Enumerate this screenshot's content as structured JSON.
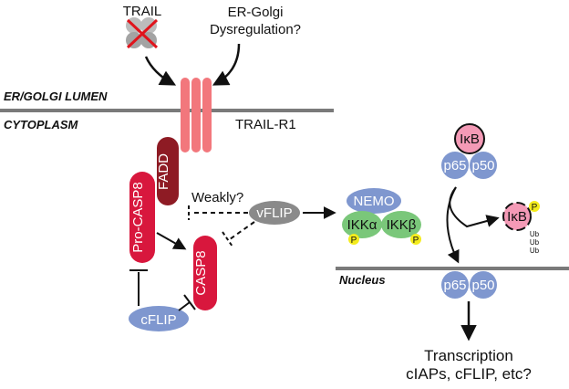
{
  "colors": {
    "membrane": "#7a7a7a",
    "receptor": "#f2777c",
    "fadd": "#8e1b24",
    "casp": "#d8173d",
    "vflip": "#8a8a8a",
    "nemo": "#7f97cf",
    "ikk": "#7ac77a",
    "phospho": "#f4ec1c",
    "ikb": "#f49ab6",
    "p65p50": "#7f97cf",
    "cflip": "#7f97cf"
  },
  "icons": {
    "trail_ligand": "gray-trimer-icon",
    "trail_blocked": "red-x-icon"
  },
  "labels": {
    "trail": "TRAIL",
    "er_golgi_1": "ER-Golgi",
    "er_golgi_2": "Dysregulation?",
    "er_golgi_lumen": "ER/GOLGI LUMEN",
    "cytoplasm": "CYTOPLASM",
    "trail_r1": "TRAIL-R1",
    "fadd": "FADD",
    "pro_casp8": "Pro-CASP8",
    "casp8": "CASP8",
    "weakly": "Weakly?",
    "vflip": "vFLIP",
    "cflip": "cFLIP",
    "nemo": "NEMO",
    "ikka": "IKKα",
    "ikkb": "IKKβ",
    "p": "P",
    "ikb": "IκB",
    "p65": "p65",
    "p50": "p50",
    "ub": "Ub",
    "nucleus": "Nucleus",
    "transcription_1": "Transcription",
    "transcription_2": "cIAPs, cFLIP, etc?"
  }
}
